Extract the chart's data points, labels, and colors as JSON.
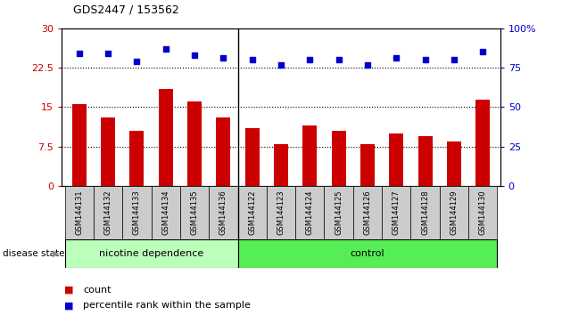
{
  "title": "GDS2447 / 153562",
  "categories": [
    "GSM144131",
    "GSM144132",
    "GSM144133",
    "GSM144134",
    "GSM144135",
    "GSM144136",
    "GSM144122",
    "GSM144123",
    "GSM144124",
    "GSM144125",
    "GSM144126",
    "GSM144127",
    "GSM144128",
    "GSM144129",
    "GSM144130"
  ],
  "bar_values": [
    15.5,
    13.0,
    10.5,
    18.5,
    16.0,
    13.0,
    11.0,
    8.0,
    11.5,
    10.5,
    8.0,
    10.0,
    9.5,
    8.5,
    16.5
  ],
  "dot_values": [
    84,
    84,
    79,
    87,
    83,
    81,
    80,
    77,
    80,
    80,
    77,
    81,
    80,
    80,
    85
  ],
  "bar_color": "#cc0000",
  "dot_color": "#0000cc",
  "ylim_left": [
    0,
    30
  ],
  "ylim_right": [
    0,
    100
  ],
  "yticks_left": [
    0,
    7.5,
    15,
    22.5,
    30
  ],
  "yticks_right": [
    0,
    25,
    50,
    75,
    100
  ],
  "ytick_labels_left": [
    "0",
    "7.5",
    "15",
    "22.5",
    "30"
  ],
  "ytick_labels_right": [
    "0",
    "25",
    "50",
    "75",
    "100%"
  ],
  "hlines": [
    7.5,
    15,
    22.5
  ],
  "group1_label": "nicotine dependence",
  "group2_label": "control",
  "group1_count": 6,
  "group2_count": 9,
  "group1_color": "#bbffbb",
  "group2_color": "#55ee55",
  "disease_state_label": "disease state",
  "legend_count_label": "count",
  "legend_pct_label": "percentile rank within the sample",
  "background_color": "#ffffff",
  "xlabel_color": "#cc0000",
  "ylabel_right_color": "#0000cc"
}
